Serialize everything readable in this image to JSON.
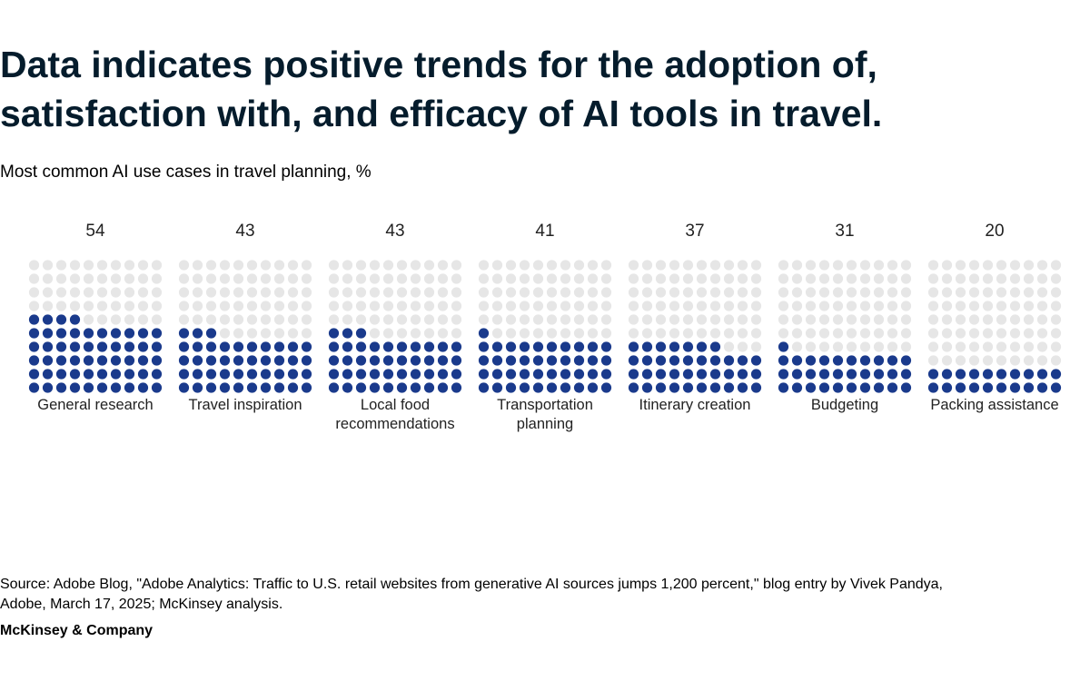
{
  "header": {
    "title": "Data indicates positive trends for the adoption of, satisfaction with, and efficacy of AI tools in travel.",
    "subtitle": "Most common AI use cases in travel planning, %"
  },
  "chart_data": {
    "type": "waffle",
    "title": "Most common AI use cases in travel planning, %",
    "unit": "%",
    "grid_total": 100,
    "categories": [
      [
        "General research"
      ],
      [
        "Travel inspiration"
      ],
      [
        "Local food",
        "recommendations"
      ],
      [
        "Transportation",
        "planning"
      ],
      [
        "Itinerary creation"
      ],
      [
        "Budgeting"
      ],
      [
        "Packing assistance"
      ]
    ],
    "values": [
      54,
      43,
      43,
      41,
      37,
      31,
      20
    ],
    "colors": {
      "filled": "#1a3a8c",
      "empty": "#e6e6e6",
      "text": "#222222"
    }
  },
  "footer": {
    "source": "Source: Adobe Blog, \"Adobe Analytics: Traffic to U.S. retail websites from generative AI sources jumps 1,200 percent,\" blog entry by Vivek Pandya, Adobe, March 17, 2025; McKinsey analysis.",
    "brand": "McKinsey & Company"
  }
}
